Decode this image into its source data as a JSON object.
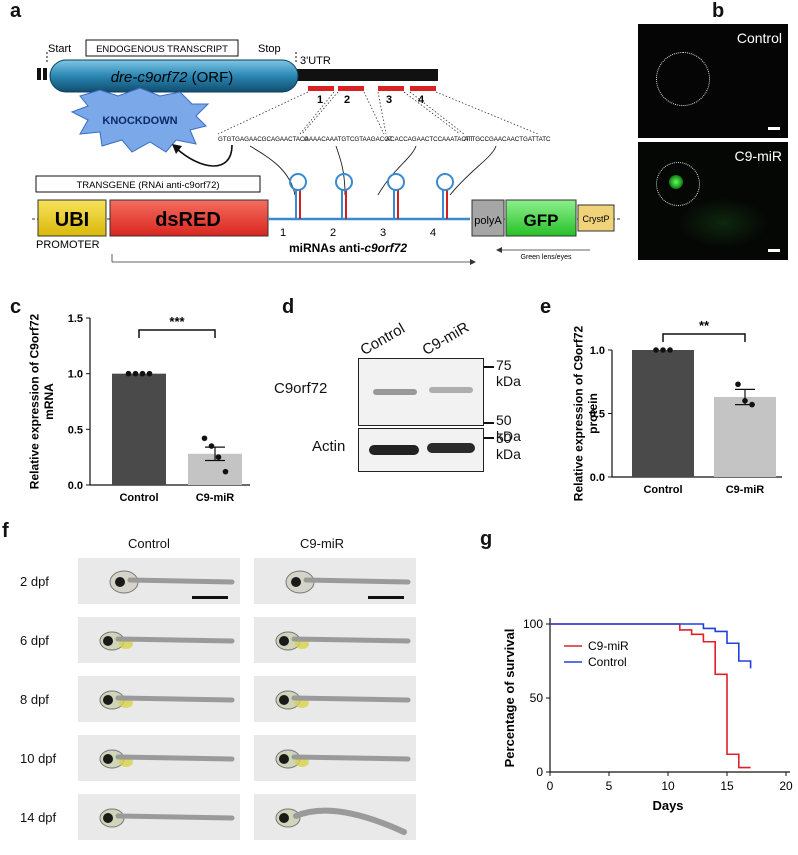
{
  "panel_labels": {
    "a": "a",
    "b": "b",
    "c": "c",
    "d": "d",
    "e": "e",
    "f": "f",
    "g": "g"
  },
  "panel_a": {
    "start": "Start",
    "stop": "Stop",
    "endogenous_box": "ENDOGENOUS TRANSCRIPT",
    "orf_gene": "dre-c9orf72",
    "orf_suffix": " (ORF)",
    "utr": "3'UTR",
    "knockdown": "KNOCKDOWN",
    "sites": [
      "1",
      "2",
      "3",
      "4"
    ],
    "sequences": [
      "GTGTGAGAACGCAGAACTACA",
      "GAAACAAATGTCGTAAGACGT",
      "ACACCAGAACTCCAAATACTT",
      "ATTGCCGAACAACTGATTATC"
    ],
    "transgene_box": "TRANSGENE (RNAi anti-c9orf72)",
    "ubi": "UBI",
    "dsred": "dsRED",
    "promoter": "PROMOTER",
    "mirna_prefix": "miRNAs anti-",
    "mirna_gene": "c9orf72",
    "polya": "polyA",
    "gfp": "GFP",
    "crystp": "CrystP",
    "green_lens": "Green lens/eyes"
  },
  "panel_b": {
    "labels": [
      "Control",
      "C9-miR"
    ]
  },
  "panel_d": {
    "lanes": [
      "Control",
      "C9-miR"
    ],
    "markers": [
      "75 kDa",
      "50 kDa",
      "50 kDa"
    ],
    "bands": [
      "C9orf72",
      "Actin"
    ]
  },
  "panel_f": {
    "columns": [
      "Control",
      "C9-miR"
    ],
    "rows": [
      "2 dpf",
      "6 dpf",
      "8 dpf",
      "10 dpf",
      "14 dpf"
    ]
  },
  "colors": {
    "dark_bar": "#4a4a4a",
    "light_bar": "#c4c4c4",
    "c9mir_line": "#e0202a",
    "control_line": "#2040e0",
    "ubi": "#f2d21e",
    "dsred": "#e8322a",
    "gfp": "#3cd23c",
    "polya": "#a0a0a0",
    "orf": "#1f7fa8"
  },
  "chart_data": [
    {
      "id": "c",
      "type": "bar",
      "categories": [
        "Control",
        "C9-miR"
      ],
      "values": [
        1.0,
        0.28
      ],
      "errors": [
        0.0,
        0.06
      ],
      "points": [
        [
          1.0,
          1.0,
          1.0,
          1.0
        ],
        [
          0.42,
          0.35,
          0.25,
          0.12
        ]
      ],
      "ylabel": "Relative expression of C9orf72 mRNA",
      "ylim": [
        0,
        1.5
      ],
      "yticks": [
        "0.0",
        "0.5",
        "1.0",
        "1.5"
      ],
      "significance": "***"
    },
    {
      "id": "e",
      "type": "bar",
      "categories": [
        "Control",
        "C9-miR"
      ],
      "values": [
        1.0,
        0.63
      ],
      "errors": [
        0.0,
        0.06
      ],
      "points": [
        [
          1.0,
          1.0,
          1.0
        ],
        [
          0.73,
          0.6,
          0.57
        ]
      ],
      "ylabel": "Relative expression of C9orf72 protein",
      "ylim": [
        0,
        1.0
      ],
      "yticks": [
        "0.0",
        "0.5",
        "1.0"
      ],
      "significance": "**"
    },
    {
      "id": "g",
      "type": "line",
      "xlabel": "Days",
      "ylabel": "Percentage of survival",
      "xlim": [
        0,
        20
      ],
      "ylim": [
        0,
        100
      ],
      "xticks": [
        "0",
        "5",
        "10",
        "15",
        "20"
      ],
      "yticks": [
        "0",
        "50",
        "100"
      ],
      "legend": "top-left",
      "series": [
        {
          "name": "C9-miR",
          "x": [
            0,
            11,
            12,
            13,
            14,
            15,
            16,
            17
          ],
          "y": [
            100,
            96,
            93,
            88,
            66,
            12,
            3,
            3
          ]
        },
        {
          "name": "Control",
          "x": [
            0,
            12,
            13,
            14,
            15,
            16,
            17
          ],
          "y": [
            100,
            100,
            97,
            95,
            87,
            75,
            70
          ]
        }
      ]
    }
  ]
}
